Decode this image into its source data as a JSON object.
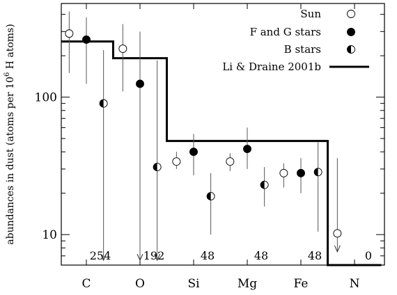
{
  "chart_data": {
    "type": "scatter",
    "ylabel": "abundances in dust  (atoms per 10",
    "ylabel_sup": "6",
    "ylabel_tail": " H atoms)",
    "y_scale": "log",
    "ylim": [
      6,
      480
    ],
    "yticks": [
      {
        "value": 10,
        "label": "10"
      },
      {
        "value": 100,
        "label": "100"
      }
    ],
    "categories": [
      "C",
      "O",
      "Si",
      "Mg",
      "Fe",
      "N"
    ],
    "series": [
      {
        "name": "Sun",
        "marker": "open-circle",
        "points": [
          {
            "x": "C",
            "offset": -0.32,
            "y": 290,
            "err_low": 150,
            "err_high": 420
          },
          {
            "x": "O",
            "offset": -0.32,
            "y": 225,
            "err_low": 110,
            "err_high": 340
          },
          {
            "x": "Si",
            "offset": -0.32,
            "y": 34,
            "err_low": 30,
            "err_high": 40
          },
          {
            "x": "Mg",
            "offset": -0.32,
            "y": 34,
            "err_low": 29,
            "err_high": 39
          },
          {
            "x": "Fe",
            "offset": -0.32,
            "y": 28,
            "err_low": 22,
            "err_high": 33
          },
          {
            "x": "N",
            "offset": -0.32,
            "y": 10.2,
            "err_low": 7.5,
            "err_high": 36,
            "upper_limit": true
          }
        ]
      },
      {
        "name": "F and G stars",
        "marker": "filled-circle",
        "points": [
          {
            "x": "C",
            "offset": 0.0,
            "y": 262,
            "err_low": 125,
            "err_high": 380
          },
          {
            "x": "O",
            "offset": 0.0,
            "y": 125,
            "err_low": 6.5,
            "err_high": 300,
            "upper_limit": true
          },
          {
            "x": "Si",
            "offset": 0.0,
            "y": 40,
            "err_low": 27,
            "err_high": 54
          },
          {
            "x": "Mg",
            "offset": 0.0,
            "y": 42,
            "err_low": 30,
            "err_high": 60
          },
          {
            "x": "Fe",
            "offset": 0.0,
            "y": 28,
            "err_low": 20,
            "err_high": 36
          }
        ]
      },
      {
        "name": "B stars",
        "marker": "half-circle",
        "points": [
          {
            "x": "C",
            "offset": 0.32,
            "y": 90,
            "err_low": 6.5,
            "err_high": 220,
            "upper_limit": true
          },
          {
            "x": "O",
            "offset": 0.32,
            "y": 31,
            "err_low": 6.5,
            "err_high": 185,
            "upper_limit": true
          },
          {
            "x": "Si",
            "offset": 0.32,
            "y": 19,
            "err_low": 10,
            "err_high": 28
          },
          {
            "x": "Mg",
            "offset": 0.32,
            "y": 23,
            "err_low": 16,
            "err_high": 31
          },
          {
            "x": "Fe",
            "offset": 0.32,
            "y": 28.5,
            "err_low": 10.5,
            "err_high": 47
          }
        ]
      }
    ],
    "model": {
      "name": "Li & Draine 2001b",
      "steps": [
        {
          "category": "C",
          "value": 254,
          "label": "254"
        },
        {
          "category": "O",
          "value": 192,
          "label": "192"
        },
        {
          "category": "Si",
          "value": 48,
          "label": "48"
        },
        {
          "category": "Mg",
          "value": 48,
          "label": "48"
        },
        {
          "category": "Fe",
          "value": 48,
          "label": "48"
        },
        {
          "category": "N",
          "value": 0,
          "label": "0"
        }
      ]
    },
    "legend_position": "top-right",
    "grid": false
  }
}
